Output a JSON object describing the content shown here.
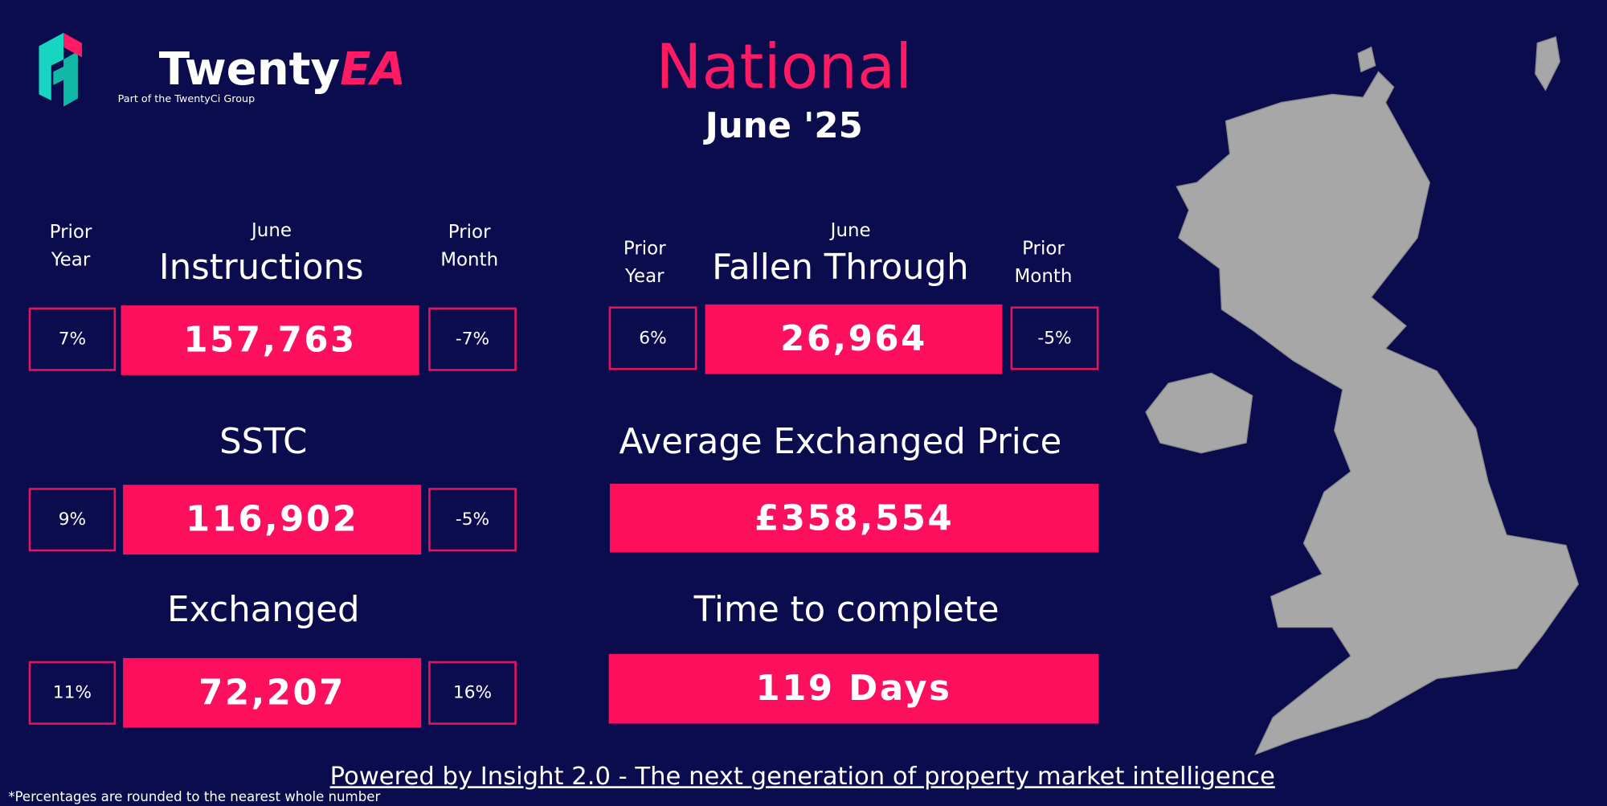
{
  "header": {
    "logo_word": "Twenty",
    "logo_accent": "EA",
    "tagline": "Part of the TwentyCi Group",
    "title": "National",
    "subtitle": "June '25"
  },
  "metrics": [
    {
      "period": "June",
      "label": "Instructions",
      "value": "157,763",
      "prior_year_label": "Prior Year",
      "prior_year": "7%",
      "prior_month_label": "Prior Month",
      "prior_month": "-7%"
    },
    {
      "period": "June",
      "label": "Fallen Through",
      "value": "26,964",
      "prior_year_label": "Prior Year",
      "prior_year": "6%",
      "prior_month_label": "Prior Month",
      "prior_month": "-5%"
    },
    {
      "label": "SSTC",
      "value": "116,902",
      "prior_year": "9%",
      "prior_month": "-5%"
    },
    {
      "label": "Average Exchanged Price",
      "value": "£358,554"
    },
    {
      "label": "Exchanged",
      "value": "72,207",
      "prior_year": "11%",
      "prior_month": "16%"
    },
    {
      "label": "Time to complete",
      "value": "119 Days"
    }
  ],
  "footer": {
    "link": "Powered by Insight 2.0 -  The next generation of property market intelligence",
    "note": "*Percentages are rounded to the nearest whole number"
  }
}
